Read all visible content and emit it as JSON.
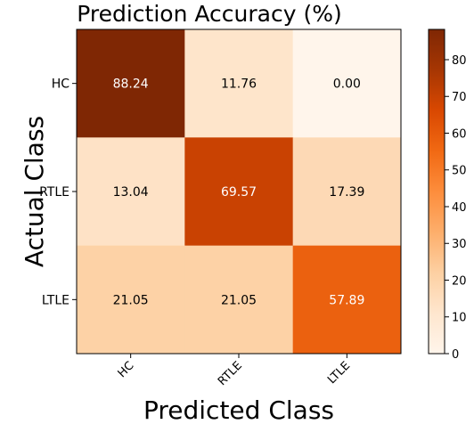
{
  "chart_data": {
    "type": "heatmap",
    "title": "Prediction Accuracy (%)",
    "xlabel": "Predicted Class",
    "ylabel": "Actual Class",
    "x_categories": [
      "HC",
      "RTLE",
      "LTLE"
    ],
    "y_categories": [
      "HC",
      "RTLE",
      "LTLE"
    ],
    "values": [
      [
        88.24,
        11.76,
        0.0
      ],
      [
        13.04,
        69.57,
        17.39
      ],
      [
        21.05,
        21.05,
        57.89
      ]
    ],
    "value_labels": [
      [
        "88.24",
        "11.76",
        "0.00"
      ],
      [
        "13.04",
        "69.57",
        "17.39"
      ],
      [
        "21.05",
        "21.05",
        "57.89"
      ]
    ],
    "colormap": "Oranges",
    "colorbar_range": [
      0,
      88.24
    ],
    "colorbar_ticks": [
      0,
      10,
      20,
      30,
      40,
      50,
      60,
      70,
      80
    ],
    "grid": false
  }
}
